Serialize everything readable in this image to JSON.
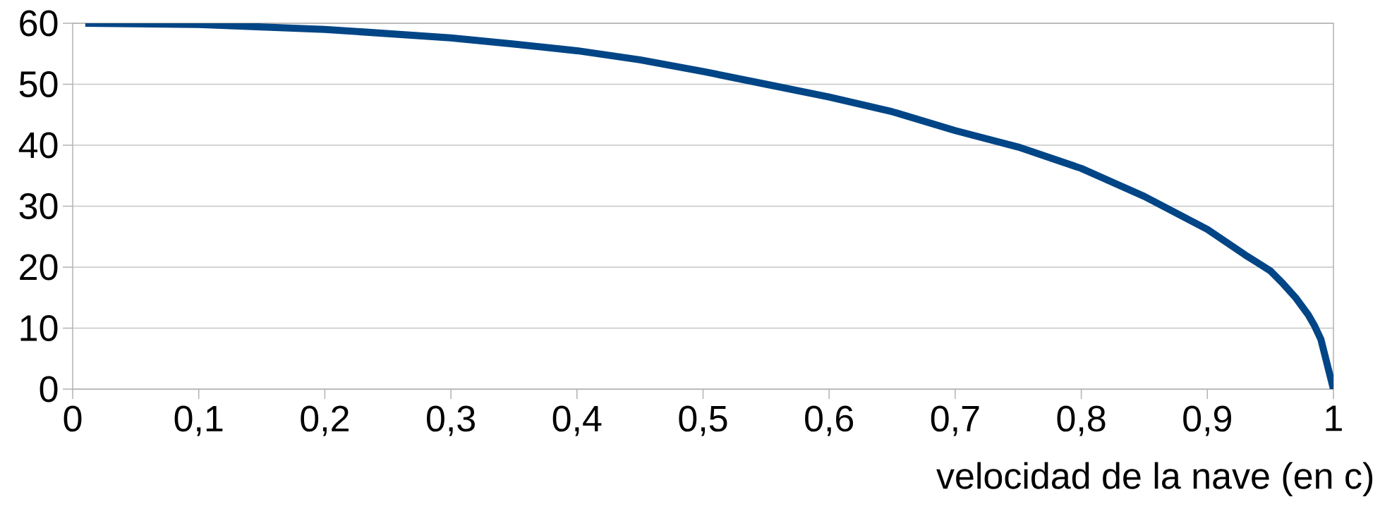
{
  "chart_data": {
    "type": "line",
    "xlabel": "velocidad de la nave (en c)",
    "x": [
      0.01,
      0.05,
      0.1,
      0.15,
      0.2,
      0.25,
      0.3,
      0.35,
      0.4,
      0.45,
      0.5,
      0.55,
      0.6,
      0.65,
      0.7,
      0.75,
      0.8,
      0.85,
      0.9,
      0.93,
      0.95,
      0.96,
      0.97,
      0.98,
      0.985,
      0.99,
      1.0
    ],
    "series": [
      {
        "color": "#004586",
        "values": [
          60,
          59.9,
          59.8,
          59.4,
          59.0,
          58.3,
          57.6,
          56.6,
          55.5,
          54.0,
          52.1,
          50.0,
          47.9,
          45.5,
          42.4,
          39.7,
          36.2,
          31.6,
          26.2,
          22.0,
          19.4,
          17.3,
          15.0,
          12.2,
          10.4,
          8.2,
          0
        ]
      }
    ],
    "xlim": [
      0,
      1
    ],
    "ylim": [
      0,
      60
    ],
    "xticks": [
      0,
      {
        "value": 0.1,
        "label": "0,1"
      },
      {
        "value": 0.2,
        "label": "0,2"
      },
      {
        "value": 0.3,
        "label": "0,3"
      },
      {
        "value": 0.4,
        "label": "0,4"
      },
      {
        "value": 0.5,
        "label": "0,5"
      },
      {
        "value": 0.6,
        "label": "0,6"
      },
      {
        "value": 0.7,
        "label": "0,7"
      },
      {
        "value": 0.8,
        "label": "0,8"
      },
      {
        "value": 0.9,
        "label": "0,9"
      },
      1
    ],
    "yticks": [
      0,
      10,
      20,
      30,
      40,
      50,
      60
    ],
    "grid": "y",
    "marker": "none",
    "line_style": "solid"
  }
}
